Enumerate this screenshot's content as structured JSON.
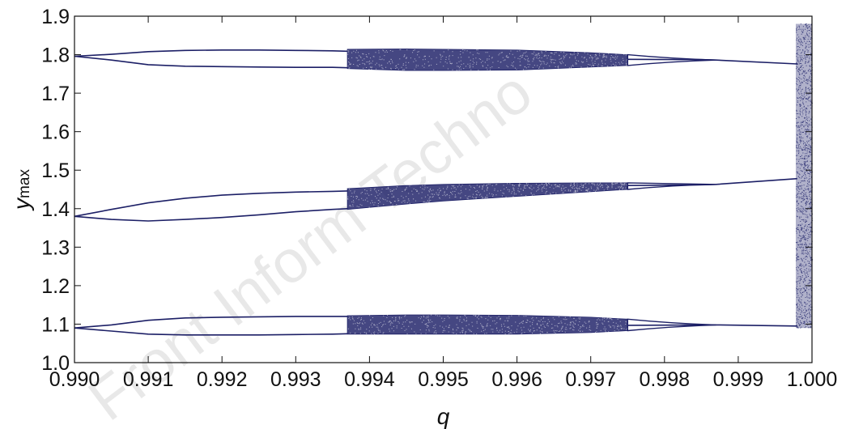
{
  "chart_data": {
    "type": "scatter",
    "title": "",
    "xlabel": "q",
    "ylabel": {
      "main": "y",
      "sub": "max"
    },
    "xlim": [
      0.99,
      1.0
    ],
    "ylim": [
      1.0,
      1.9
    ],
    "x_ticks": [
      0.99,
      0.991,
      0.992,
      0.993,
      0.994,
      0.995,
      0.996,
      0.997,
      0.998,
      0.999,
      1.0
    ],
    "x_tick_labels": [
      "0.990",
      "0.991",
      "0.992",
      "0.993",
      "0.994",
      "0.995",
      "0.996",
      "0.997",
      "0.998",
      "0.999",
      "1.000"
    ],
    "y_ticks": [
      1.0,
      1.1,
      1.2,
      1.3,
      1.4,
      1.5,
      1.6,
      1.7,
      1.8,
      1.9
    ],
    "y_tick_labels": [
      "1.0",
      "1.1",
      "1.2",
      "1.3",
      "1.4",
      "1.5",
      "1.6",
      "1.7",
      "1.8",
      "1.9"
    ],
    "grid": false,
    "legend": "none",
    "marker_color": "#1c1f66",
    "series": [
      {
        "branches": [
          {
            "x": [
              0.99,
              0.9905,
              0.991,
              0.9915,
              0.992,
              0.9925,
              0.993,
              0.9935,
              0.9937
            ],
            "y": [
              1.796,
              1.801,
              1.808,
              1.811,
              1.812,
              1.812,
              1.811,
              1.81,
              1.809
            ]
          },
          {
            "x": [
              0.99,
              0.9905,
              0.991,
              0.9915,
              0.992,
              0.9925,
              0.993,
              0.9935,
              0.9937
            ],
            "y": [
              1.796,
              1.786,
              1.774,
              1.77,
              1.769,
              1.768,
              1.767,
              1.767,
              1.766
            ]
          }
        ],
        "chaotic_band": {
          "x": [
            0.9937,
            0.9945,
            0.995,
            0.996,
            0.997,
            0.9975
          ],
          "y_upper": [
            1.814,
            1.815,
            1.814,
            1.812,
            1.805,
            1.8
          ],
          "y_lower": [
            1.764,
            1.759,
            1.759,
            1.76,
            1.768,
            1.772
          ]
        },
        "merged": {
          "x": [
            0.9975,
            0.9985,
            0.9987,
            0.9998
          ],
          "y": [
            1.788,
            1.787,
            1.786,
            1.776
          ]
        }
      },
      {
        "branches": [
          {
            "x": [
              0.99,
              0.9905,
              0.991,
              0.9915,
              0.992,
              0.9925,
              0.993,
              0.9935,
              0.9937
            ],
            "y": [
              1.38,
              1.398,
              1.415,
              1.427,
              1.435,
              1.44,
              1.443,
              1.445,
              1.446
            ]
          },
          {
            "x": [
              0.99,
              0.9905,
              0.991,
              0.9915,
              0.992,
              0.9925,
              0.993,
              0.9935,
              0.9937
            ],
            "y": [
              1.38,
              1.372,
              1.368,
              1.372,
              1.377,
              1.384,
              1.392,
              1.398,
              1.4
            ]
          }
        ],
        "chaotic_band": {
          "x": [
            0.9937,
            0.9945,
            0.995,
            0.996,
            0.997,
            0.9975
          ],
          "y_upper": [
            1.452,
            1.46,
            1.463,
            1.466,
            1.467,
            1.467
          ],
          "y_lower": [
            1.398,
            1.412,
            1.42,
            1.432,
            1.444,
            1.45
          ]
        },
        "merged": {
          "x": [
            0.9975,
            0.9985,
            0.9987,
            0.9998
          ],
          "y": [
            1.46,
            1.462,
            1.463,
            1.478
          ]
        }
      },
      {
        "branches": [
          {
            "x": [
              0.99,
              0.9905,
              0.991,
              0.9915,
              0.992,
              0.9925,
              0.993,
              0.9935,
              0.9937
            ],
            "y": [
              1.09,
              1.098,
              1.11,
              1.116,
              1.118,
              1.119,
              1.12,
              1.12,
              1.12
            ]
          },
          {
            "x": [
              0.99,
              0.9905,
              0.991,
              0.9915,
              0.992,
              0.9925,
              0.993,
              0.9935,
              0.9937
            ],
            "y": [
              1.09,
              1.082,
              1.074,
              1.072,
              1.072,
              1.072,
              1.073,
              1.074,
              1.075
            ]
          }
        ],
        "chaotic_band": {
          "x": [
            0.9937,
            0.9945,
            0.995,
            0.996,
            0.997,
            0.9975
          ],
          "y_upper": [
            1.122,
            1.124,
            1.124,
            1.123,
            1.118,
            1.113
          ],
          "y_lower": [
            1.074,
            1.074,
            1.074,
            1.074,
            1.078,
            1.083
          ]
        },
        "merged": {
          "x": [
            0.9975,
            0.9985,
            0.9987,
            0.9998
          ],
          "y": [
            1.097,
            1.098,
            1.098,
            1.095
          ]
        }
      },
      {
        "chaotic_region": {
          "x": [
            0.99978,
            1.0
          ],
          "y": [
            1.09,
            1.88
          ]
        }
      }
    ]
  },
  "watermark_text": "Front Inform Techno"
}
